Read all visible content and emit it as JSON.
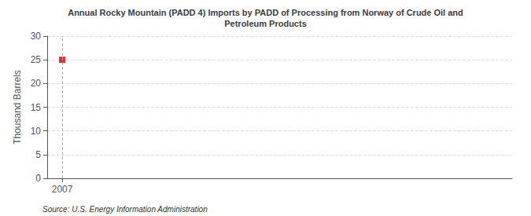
{
  "chart_data": {
    "type": "scatter",
    "title": "Annual Rocky Mountain (PADD 4) Imports by PADD of Processing from Norway of Crude Oil and\nPetroleum Products",
    "ylabel": "Thousand Barrels",
    "source": "Source: U.S. Energy Information Administration",
    "x": [
      2007
    ],
    "values": [
      25
    ],
    "color": "#cc0000",
    "marker": "square",
    "xlim": [
      2006.7,
      2016.0
    ],
    "xticks": [
      2007
    ],
    "ylim": [
      0,
      30
    ],
    "yticks": [
      0,
      5,
      10,
      15,
      20,
      25,
      30
    ],
    "grid": true
  }
}
